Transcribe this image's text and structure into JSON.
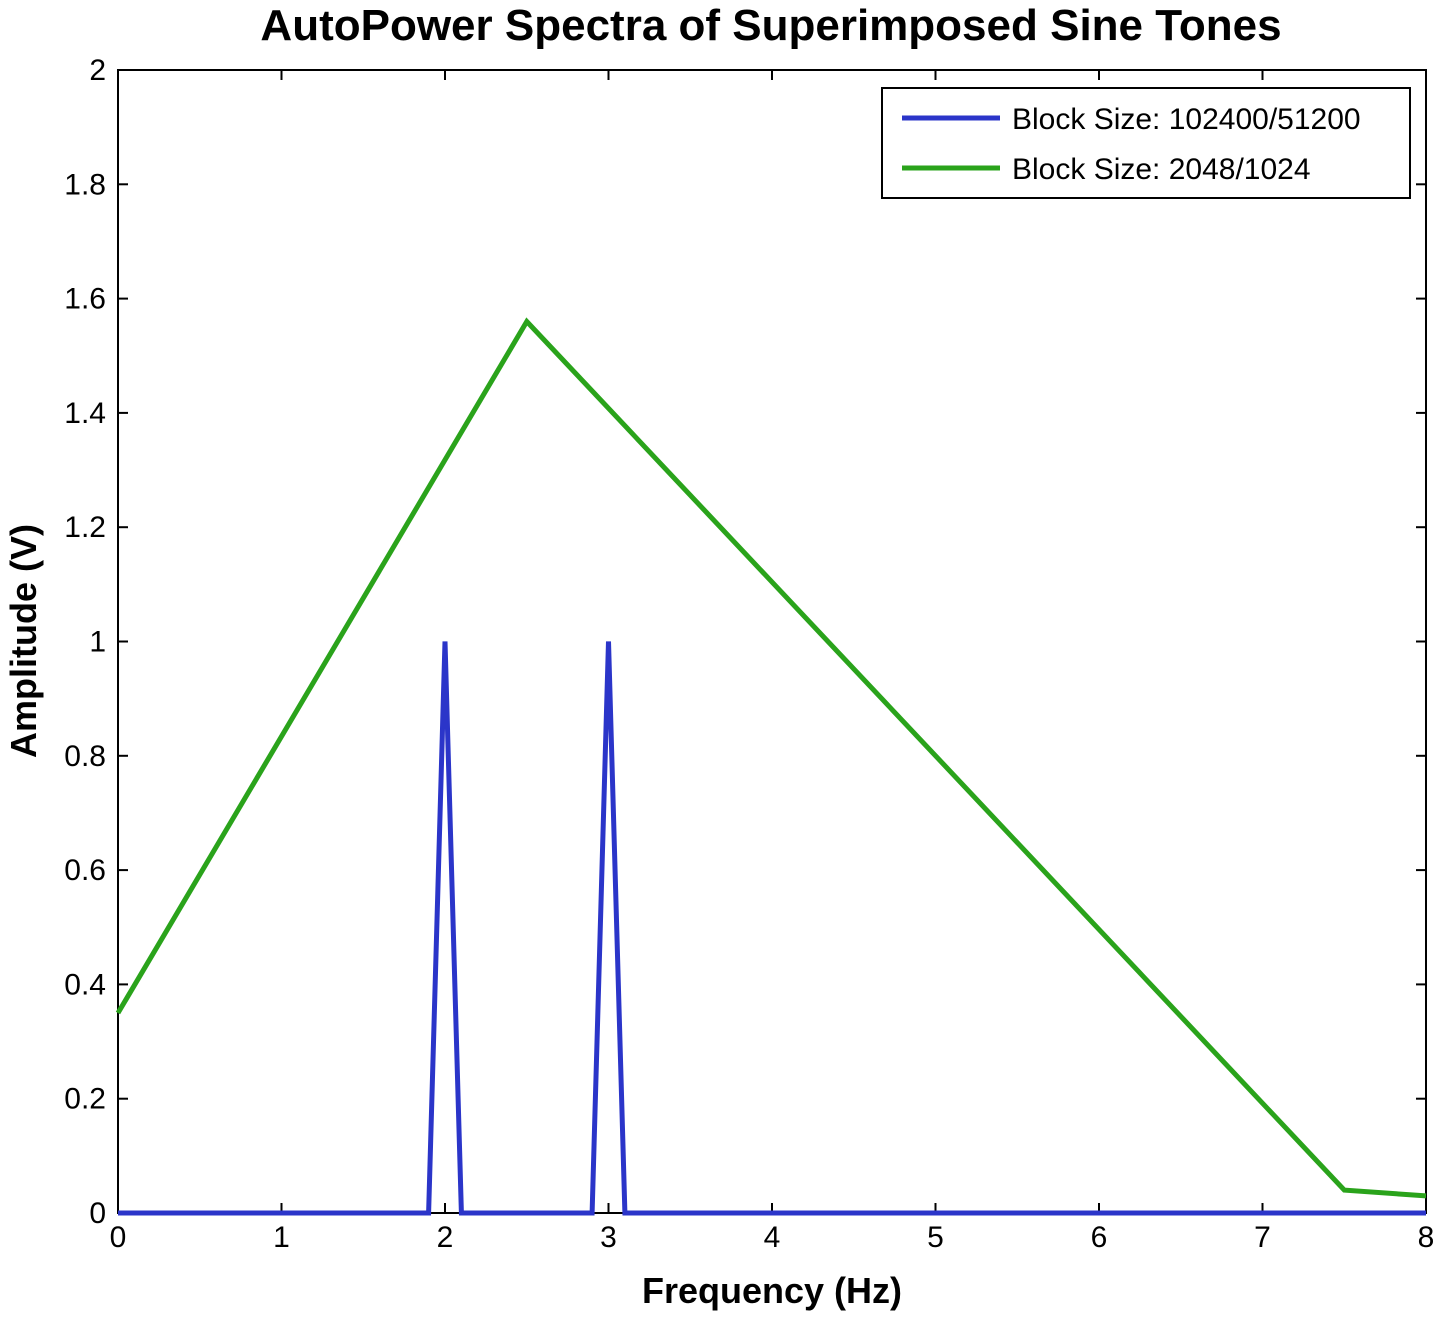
{
  "chart_data": {
    "type": "line",
    "title": "AutoPower Spectra of Superimposed Sine Tones",
    "xlabel": "Frequency (Hz)",
    "ylabel": "Amplitude (V)",
    "xlim": [
      0,
      8
    ],
    "ylim": [
      0,
      2
    ],
    "x_ticks": [
      "0",
      "1",
      "2",
      "3",
      "4",
      "5",
      "6",
      "7",
      "8"
    ],
    "y_ticks": [
      "0",
      "0.2",
      "0.4",
      "0.6",
      "0.8",
      "1",
      "1.2",
      "1.4",
      "1.6",
      "1.8",
      "2"
    ],
    "grid": false,
    "legend_position": "top-right",
    "series": [
      {
        "name": "Block Size: 102400/51200",
        "color": "#2b35c9",
        "x": [
          0,
          1.9,
          2.0,
          2.1,
          2.9,
          3.0,
          3.1,
          8
        ],
        "y": [
          0,
          0,
          1.0,
          0,
          0,
          1.0,
          0,
          0
        ]
      },
      {
        "name": "Block Size: 2048/1024",
        "color": "#2aa31b",
        "x": [
          0,
          2.5,
          7.5,
          8
        ],
        "y": [
          0.35,
          1.56,
          0.04,
          0.03
        ]
      }
    ]
  }
}
